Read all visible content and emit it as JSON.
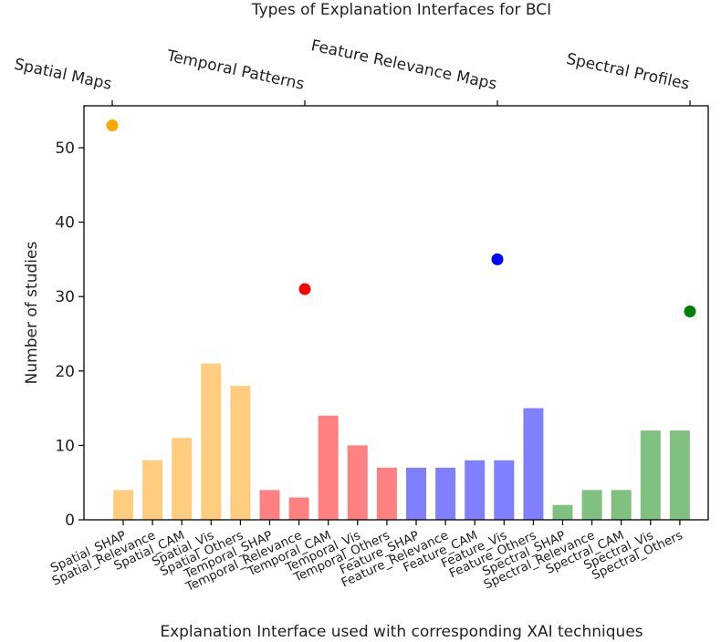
{
  "chart_data": {
    "type": "bar",
    "title": "Types of Explanation Interfaces for BCI",
    "xlabel": "Explanation Interface used with corresponding XAI techniques",
    "ylabel": "Number of studies",
    "ylim": [
      0,
      56
    ],
    "yticks": [
      0,
      10,
      20,
      30,
      40,
      50
    ],
    "grid": false,
    "categories": [
      "Spatial_SHAP",
      "Spatial_Relevance",
      "Spatial_CAM",
      "Spatial_Vis",
      "Spatial_Others",
      "Temporal_SHAP",
      "Temporal_Relevance",
      "Temporal_CAM",
      "Temporal_Vis",
      "Temporal_Others",
      "Feature_SHAP",
      "Feature_Relevance",
      "Feature_CAM",
      "Feature_Vis",
      "Feature_Others",
      "Spectral_SHAP",
      "Spectral_Relevance",
      "Spectral_CAM",
      "Spectral_Vis",
      "Spectral_Others"
    ],
    "values": [
      4,
      8,
      11,
      21,
      18,
      4,
      3,
      14,
      10,
      7,
      7,
      7,
      8,
      8,
      15,
      2,
      4,
      4,
      12,
      12
    ],
    "groups": [
      {
        "name": "Spatial Maps",
        "total": 53,
        "bar_color": "#ffcc80",
        "dot_color": "#ffa500"
      },
      {
        "name": "Temporal Patterns",
        "total": 31,
        "bar_color": "#ff8080",
        "dot_color": "#ff0000"
      },
      {
        "name": "Feature Relevance Maps",
        "total": 35,
        "bar_color": "#8080ff",
        "dot_color": "#0000ff"
      },
      {
        "name": "Spectral Profiles",
        "total": 28,
        "bar_color": "#80c080",
        "dot_color": "#008000"
      }
    ],
    "group_size": 5
  }
}
